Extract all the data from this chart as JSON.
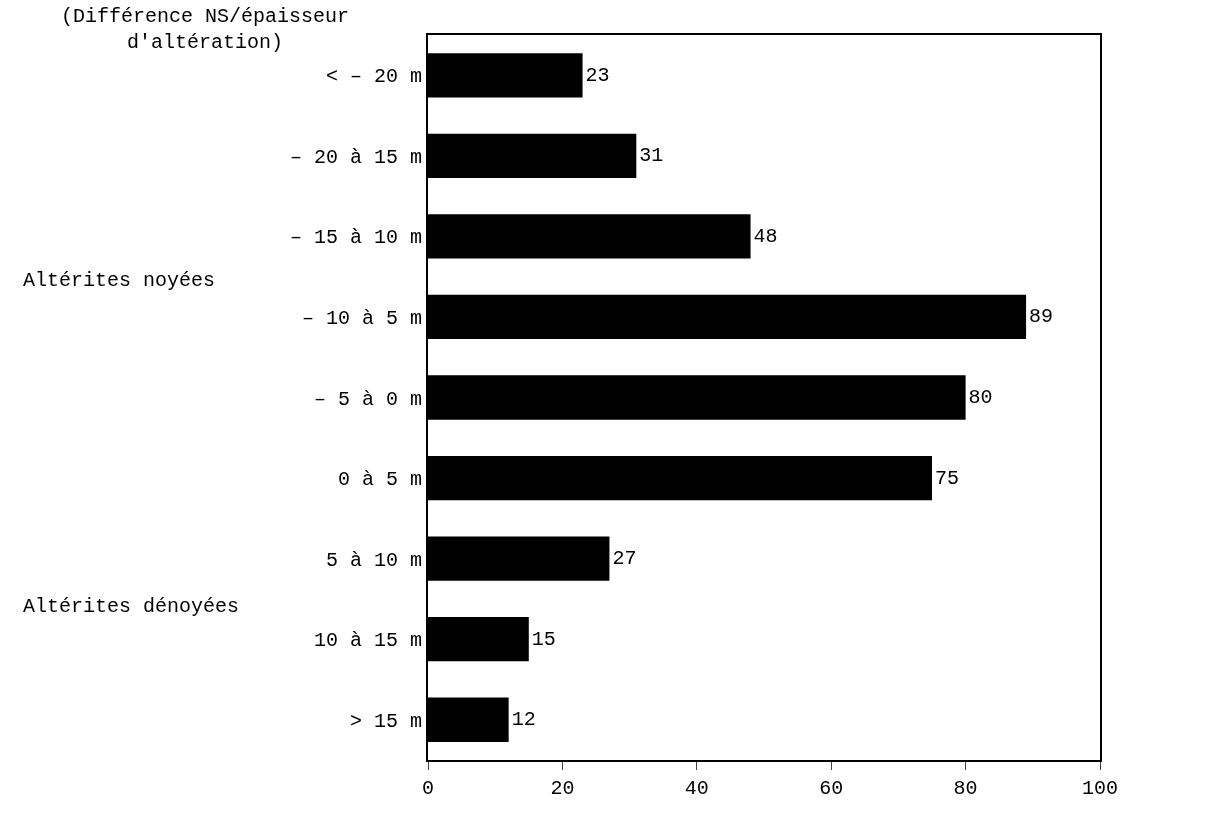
{
  "chart_data": {
    "type": "bar",
    "orientation": "horizontal",
    "ylabel": "(Différence NS/épaisseur d'altération)",
    "categories": [
      "< – 20 m",
      "– 20 à 15 m",
      "– 15 à 10 m",
      "– 10 à 5 m",
      "– 5 à 0 m",
      "0 à 5 m",
      "5 à 10 m",
      "10 à 15 m",
      "> 15 m"
    ],
    "values": [
      23,
      31,
      48,
      89,
      80,
      75,
      27,
      15,
      12
    ],
    "color": "#000000",
    "data_labels": true,
    "xlim": [
      0,
      100
    ],
    "xticks": [
      0,
      20,
      40,
      60,
      80,
      100
    ],
    "annotations": [
      "Altérites noyées",
      "Altérites dénoyées"
    ],
    "grid": false,
    "legend": false
  }
}
